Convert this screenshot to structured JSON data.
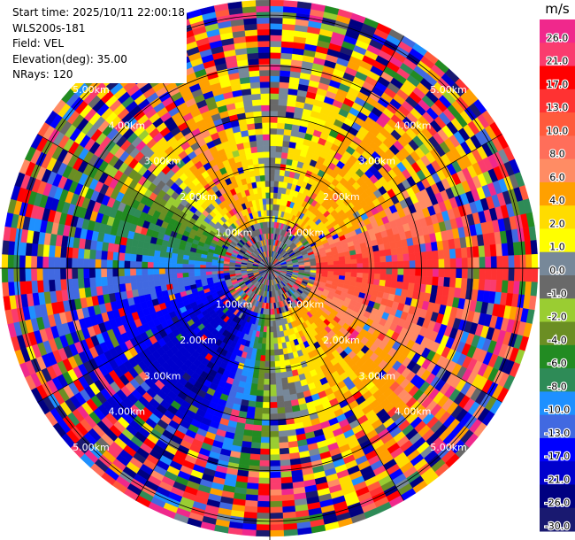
{
  "info": {
    "start_time": "Start time: 2025/10/11 22:00:18",
    "instrument": "WLS200s-181",
    "field": "Field: VEL",
    "elevation": "Elevation(deg): 35.00",
    "nrays": "NRays: 120"
  },
  "chart_data": {
    "type": "heatmap",
    "projection": "polar-ppi",
    "field": "VEL",
    "units": "m/s",
    "nrays": 120,
    "range_rings_km": [
      1,
      2,
      3,
      4,
      5
    ],
    "max_range_km": 5.3,
    "ring_labels": {
      "nw": [
        "1.00km",
        "2.00km",
        "3.00km",
        "4.00km",
        "5.00km"
      ],
      "ne": [
        "1.00km",
        "2.00km",
        "3.00km",
        "4.00km",
        "5.00km"
      ],
      "sw": [
        "1.00km",
        "2.00km",
        "3.00km",
        "4.00km",
        "5.00km"
      ],
      "se": [
        "1.00km",
        "2.00km",
        "3.00km",
        "4.00km",
        "5.00km"
      ]
    },
    "spokes_deg": [
      0,
      30,
      60,
      90,
      120,
      150,
      180,
      210,
      240,
      270,
      300,
      330
    ],
    "grid": true,
    "velocity_pattern": [
      {
        "azimuth_deg": 0,
        "velocity_ms": 0
      },
      {
        "azimuth_deg": 30,
        "velocity_ms": 4
      },
      {
        "azimuth_deg": 60,
        "velocity_ms": 4
      },
      {
        "azimuth_deg": 90,
        "velocity_ms": 15
      },
      {
        "azimuth_deg": 120,
        "velocity_ms": 6
      },
      {
        "azimuth_deg": 150,
        "velocity_ms": 4
      },
      {
        "azimuth_deg": 180,
        "velocity_ms": -1
      },
      {
        "azimuth_deg": 210,
        "velocity_ms": -21
      },
      {
        "azimuth_deg": 240,
        "velocity_ms": -17
      },
      {
        "azimuth_deg": 270,
        "velocity_ms": -10
      },
      {
        "azimuth_deg": 300,
        "velocity_ms": -3
      },
      {
        "azimuth_deg": 330,
        "velocity_ms": 6
      }
    ],
    "colorbar": {
      "label": "m/s",
      "bins": [
        {
          "label": "26.0",
          "color": "#f0288c"
        },
        {
          "label": "21.0",
          "color": "#fa3c6e"
        },
        {
          "label": "17.0",
          "color": "#ff0000"
        },
        {
          "label": "13.0",
          "color": "#ff3232"
        },
        {
          "label": "10.0",
          "color": "#ff5a3c"
        },
        {
          "label": "8.0",
          "color": "#ff6e5a"
        },
        {
          "label": "6.0",
          "color": "#ff8c64"
        },
        {
          "label": "4.0",
          "color": "#ffa000"
        },
        {
          "label": "2.0",
          "color": "#ffdc00"
        },
        {
          "label": "1.0",
          "color": "#ffff00"
        },
        {
          "label": "0.0",
          "color": "#778899"
        },
        {
          "label": "-1.0",
          "color": "#696969"
        },
        {
          "label": "-2.0",
          "color": "#9acd32"
        },
        {
          "label": "-4.0",
          "color": "#6b8e23"
        },
        {
          "label": "-6.0",
          "color": "#228b22"
        },
        {
          "label": "-8.0",
          "color": "#2e8b57"
        },
        {
          "label": "-10.0",
          "color": "#1e90ff"
        },
        {
          "label": "-13.0",
          "color": "#4169e1"
        },
        {
          "label": "-17.0",
          "color": "#0000ff"
        },
        {
          "label": "-21.0",
          "color": "#0000cd"
        },
        {
          "label": "-26.0",
          "color": "#000080"
        },
        {
          "label": "-30.0",
          "color": "#191970"
        }
      ]
    }
  }
}
